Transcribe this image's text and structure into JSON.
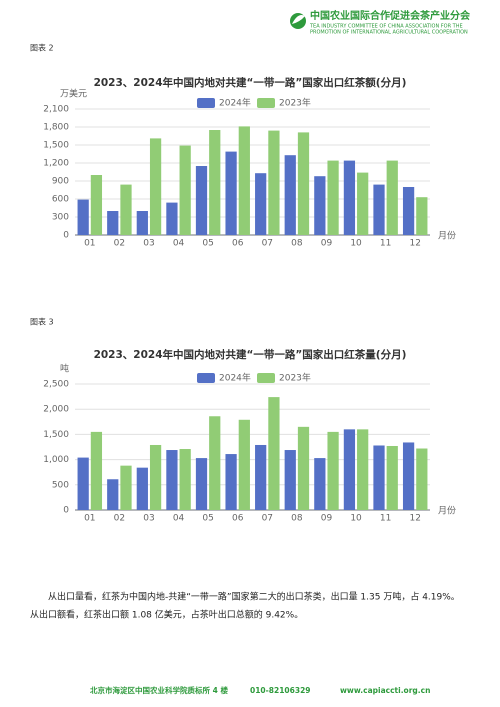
{
  "header": {
    "org_cn": "中国农业国际合作促进会茶产业分会",
    "org_en_1": "TEA INDUSTRY COMMITTEE OF CHINA ASSOCIATION FOR THE",
    "org_en_2": "PROMOTION OF INTERNATIONAL AGRICULTURAL COOPERATION"
  },
  "figure_labels": [
    "图表 2",
    "图表 3"
  ],
  "chart_data": [
    {
      "type": "bar",
      "title": "2023、2024年中国内地对共建“一带一路”国家出口红茶额(分月)",
      "y_label": "万美元",
      "x_label": "月份",
      "categories": [
        "01",
        "02",
        "03",
        "04",
        "05",
        "06",
        "07",
        "08",
        "09",
        "10",
        "11",
        "12"
      ],
      "series": [
        {
          "name": "2024年",
          "color": "#5470c6",
          "values": [
            590,
            400,
            400,
            540,
            1150,
            1390,
            1030,
            1330,
            980,
            1240,
            840,
            800
          ]
        },
        {
          "name": "2023年",
          "color": "#91cc75",
          "values": [
            1000,
            840,
            1610,
            1490,
            1750,
            1810,
            1740,
            1710,
            1240,
            1040,
            1240,
            630
          ]
        }
      ],
      "ylim": [
        0,
        2100
      ],
      "yticks": [
        0,
        300,
        600,
        900,
        {
          "value": 1200,
          "label": "1,200"
        },
        {
          "value": 1500,
          "label": "1,500"
        },
        {
          "value": 1800,
          "label": "1,800"
        },
        {
          "value": 2100,
          "label": "2,100"
        }
      ],
      "grid": true,
      "legend": "top"
    },
    {
      "type": "bar",
      "title": "2023、2024年中国内地对共建“一带一路”国家出口红茶量(分月)",
      "y_label": "吨",
      "x_label": "月份",
      "categories": [
        "01",
        "02",
        "03",
        "04",
        "05",
        "06",
        "07",
        "08",
        "09",
        "10",
        "11",
        "12"
      ],
      "series": [
        {
          "name": "2024年",
          "color": "#5470c6",
          "values": [
            1040,
            610,
            840,
            1190,
            1030,
            1110,
            1290,
            1190,
            1030,
            1600,
            1280,
            1340
          ]
        },
        {
          "name": "2023年",
          "color": "#91cc75",
          "values": [
            1550,
            880,
            1290,
            1210,
            1860,
            1790,
            2240,
            1650,
            1550,
            1600,
            1270,
            1220
          ]
        }
      ],
      "ylim": [
        0,
        2500
      ],
      "yticks": [
        0,
        500,
        {
          "value": 1000,
          "label": "1,000"
        },
        {
          "value": 1500,
          "label": "1,500"
        },
        {
          "value": 2000,
          "label": "2,000"
        },
        {
          "value": 2500,
          "label": "2,500"
        }
      ],
      "grid": true,
      "legend": "top"
    }
  ],
  "paragraph": [
    "从出口量看，红茶为中国内地-共建“一带一路”国家第二大的出口茶类，出口量 1.35 万吨，占 4.19%。",
    "从出口额看，红茶出口额 1.08 亿美元，占茶叶出口总额的 9.42%。"
  ],
  "footer": {
    "address": "北京市海淀区中国农业科学院质标所 4 楼",
    "phone": "010-82106329",
    "website": "www.capiaccti.org.cn"
  }
}
